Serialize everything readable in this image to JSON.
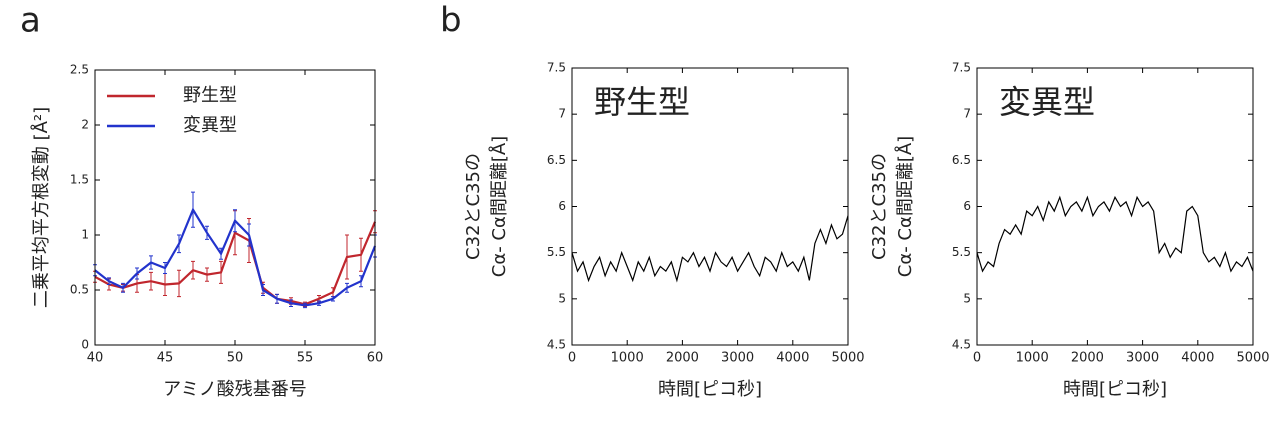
{
  "chart_data": [
    {
      "type": "line",
      "panel_label": "a",
      "xlabel": "アミノ酸残基番号",
      "ylabel": [
        "二乗平均平方根変動 [Å²]"
      ],
      "x": [
        40,
        41,
        42,
        43,
        44,
        45,
        46,
        47,
        48,
        49,
        50,
        51,
        52,
        53,
        54,
        55,
        56,
        57,
        58,
        59,
        60
      ],
      "series": [
        {
          "name": "野生型",
          "color": "#c0262d",
          "values": [
            0.62,
            0.55,
            0.52,
            0.56,
            0.58,
            0.55,
            0.56,
            0.68,
            0.64,
            0.66,
            1.02,
            0.95,
            0.52,
            0.42,
            0.4,
            0.37,
            0.42,
            0.48,
            0.8,
            0.82,
            1.12
          ],
          "errors": [
            0.05,
            0.05,
            0.03,
            0.08,
            0.08,
            0.1,
            0.12,
            0.08,
            0.06,
            0.1,
            0.2,
            0.2,
            0.05,
            0.04,
            0.03,
            0.02,
            0.03,
            0.04,
            0.2,
            0.15,
            0.1
          ]
        },
        {
          "name": "変異型",
          "color": "#2233cc",
          "values": [
            0.68,
            0.58,
            0.52,
            0.65,
            0.75,
            0.7,
            0.92,
            1.23,
            1.02,
            0.83,
            1.13,
            1.0,
            0.5,
            0.42,
            0.38,
            0.36,
            0.38,
            0.42,
            0.52,
            0.58,
            0.9
          ],
          "errors": [
            0.05,
            0.03,
            0.04,
            0.05,
            0.06,
            0.05,
            0.08,
            0.16,
            0.06,
            0.05,
            0.1,
            0.1,
            0.05,
            0.04,
            0.03,
            0.02,
            0.02,
            0.02,
            0.04,
            0.05,
            0.1
          ]
        }
      ],
      "xlim": [
        40,
        60
      ],
      "xticks": [
        40,
        45,
        50,
        55,
        60
      ],
      "ylim": [
        0,
        2.5
      ],
      "yticks": [
        0,
        0.5,
        1,
        1.5,
        2,
        2.5
      ],
      "legend": "upper left"
    },
    {
      "type": "line",
      "panel_label": "b",
      "annotation": "野生型",
      "xlabel": "時間[ピコ秒]",
      "ylabel": [
        "C32とC35の",
        "Cα- Cα間距離[Å]"
      ],
      "x": [
        0,
        100,
        200,
        300,
        400,
        500,
        600,
        700,
        800,
        900,
        1000,
        1100,
        1200,
        1300,
        1400,
        1500,
        1600,
        1700,
        1800,
        1900,
        2000,
        2100,
        2200,
        2300,
        2400,
        2500,
        2600,
        2700,
        2800,
        2900,
        3000,
        3100,
        3200,
        3300,
        3400,
        3500,
        3600,
        3700,
        3800,
        3900,
        4000,
        4100,
        4200,
        4300,
        4400,
        4500,
        4600,
        4700,
        4800,
        4900,
        5000
      ],
      "series": [
        {
          "name": "野生型",
          "color": "#000000",
          "values": [
            5.5,
            5.3,
            5.4,
            5.2,
            5.35,
            5.45,
            5.25,
            5.4,
            5.3,
            5.5,
            5.35,
            5.2,
            5.4,
            5.3,
            5.45,
            5.25,
            5.35,
            5.3,
            5.4,
            5.2,
            5.45,
            5.4,
            5.5,
            5.35,
            5.45,
            5.3,
            5.5,
            5.4,
            5.35,
            5.45,
            5.3,
            5.4,
            5.5,
            5.35,
            5.25,
            5.45,
            5.4,
            5.3,
            5.5,
            5.35,
            5.4,
            5.3,
            5.45,
            5.2,
            5.6,
            5.75,
            5.6,
            5.8,
            5.65,
            5.7,
            5.9
          ]
        }
      ],
      "xlim": [
        0,
        5000
      ],
      "xticks": [
        0,
        1000,
        2000,
        3000,
        4000,
        5000
      ],
      "ylim": [
        4.5,
        7.5
      ],
      "yticks": [
        4.5,
        5,
        5.5,
        6,
        6.5,
        7,
        7.5
      ]
    },
    {
      "type": "line",
      "annotation": "変異型",
      "xlabel": "時間[ピコ秒]",
      "ylabel": [
        "C32とC35の",
        "Cα- Cα間距離[Å]"
      ],
      "x": [
        0,
        100,
        200,
        300,
        400,
        500,
        600,
        700,
        800,
        900,
        1000,
        1100,
        1200,
        1300,
        1400,
        1500,
        1600,
        1700,
        1800,
        1900,
        2000,
        2100,
        2200,
        2300,
        2400,
        2500,
        2600,
        2700,
        2800,
        2900,
        3000,
        3100,
        3200,
        3300,
        3400,
        3500,
        3600,
        3700,
        3800,
        3900,
        4000,
        4100,
        4200,
        4300,
        4400,
        4500,
        4600,
        4700,
        4800,
        4900,
        5000
      ],
      "series": [
        {
          "name": "変異型",
          "color": "#000000",
          "values": [
            5.5,
            5.3,
            5.4,
            5.35,
            5.6,
            5.75,
            5.7,
            5.8,
            5.7,
            5.95,
            5.9,
            6.0,
            5.85,
            6.05,
            5.95,
            6.1,
            5.9,
            6.0,
            6.05,
            5.95,
            6.1,
            5.9,
            6.0,
            6.05,
            5.95,
            6.1,
            6.0,
            6.05,
            5.9,
            6.1,
            6.0,
            6.05,
            5.95,
            5.5,
            5.6,
            5.45,
            5.55,
            5.5,
            5.95,
            6.0,
            5.9,
            5.5,
            5.4,
            5.45,
            5.35,
            5.5,
            5.3,
            5.4,
            5.35,
            5.45,
            5.3
          ]
        }
      ],
      "xlim": [
        0,
        5000
      ],
      "xticks": [
        0,
        1000,
        2000,
        3000,
        4000,
        5000
      ],
      "ylim": [
        4.5,
        7.5
      ],
      "yticks": [
        4.5,
        5,
        5.5,
        6,
        6.5,
        7,
        7.5
      ]
    }
  ]
}
